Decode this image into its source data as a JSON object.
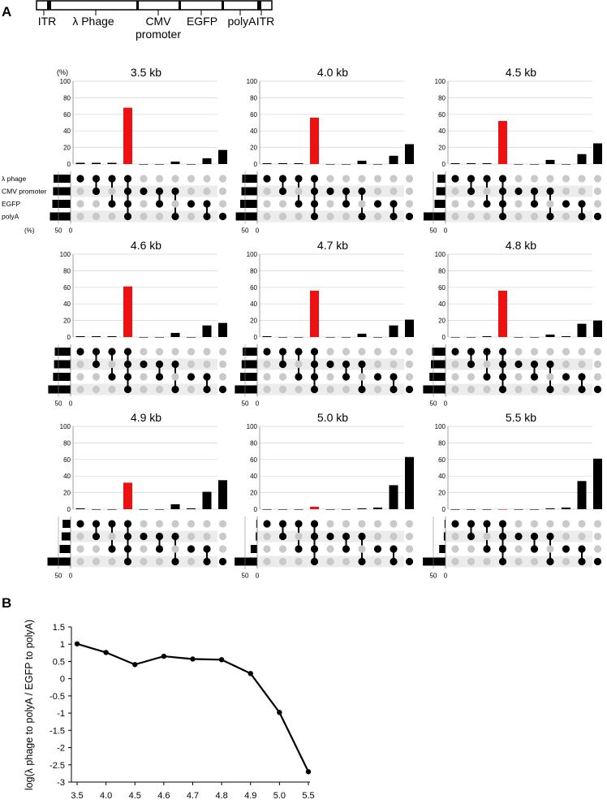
{
  "panel_labels": {
    "a": "A",
    "b": "B"
  },
  "construct": {
    "labels": [
      "ITR",
      "λ Phage",
      "CMV",
      "promoter",
      "EGFP",
      "polyA",
      "ITR"
    ]
  },
  "upset": {
    "y_ticks": [
      "100",
      "80",
      "60",
      "40",
      "20",
      "0"
    ],
    "percent_label": "(%)",
    "set_labels": [
      "λ phage",
      "CMV promoter",
      "EGFP",
      "polyA"
    ],
    "set_axis_ticks": [
      "50",
      "0"
    ],
    "highlight_color": "#ee1111",
    "bar_color": "#000000"
  },
  "chart_data": [
    {
      "type": "bar",
      "chart": "upset",
      "ylim": [
        0,
        100
      ],
      "sets": [
        "λ phage",
        "CMV promoter",
        "EGFP",
        "polyA"
      ],
      "combinations": [
        [
          1,
          0,
          0,
          0
        ],
        [
          1,
          1,
          0,
          0
        ],
        [
          1,
          0,
          1,
          0
        ],
        [
          1,
          1,
          1,
          1
        ],
        [
          0,
          1,
          0,
          0
        ],
        [
          0,
          1,
          1,
          0
        ],
        [
          0,
          1,
          0,
          1
        ],
        [
          0,
          0,
          1,
          0
        ],
        [
          0,
          0,
          1,
          1
        ],
        [
          0,
          0,
          0,
          1
        ]
      ],
      "panels": [
        {
          "title": "3.5 kb",
          "values": [
            1.5,
            1.5,
            1.5,
            68,
            0,
            0,
            3,
            0,
            7,
            17
          ],
          "highlight": 3,
          "set_sizes": [
            70,
            72,
            75,
            85
          ]
        },
        {
          "title": "4.0 kb",
          "values": [
            1,
            1,
            1,
            56,
            0,
            0,
            4,
            0,
            10,
            24
          ],
          "highlight": 3,
          "set_sizes": [
            62,
            65,
            70,
            88
          ]
        },
        {
          "title": "4.5 kb",
          "values": [
            1,
            1,
            1,
            52,
            0,
            0,
            5,
            0,
            12,
            25
          ],
          "highlight": 3,
          "set_sizes": [
            33,
            38,
            45,
            90
          ]
        },
        {
          "title": "4.6 kb",
          "values": [
            1,
            1,
            1,
            61,
            0,
            0,
            5,
            0,
            14,
            17
          ],
          "highlight": 3,
          "set_sizes": [
            65,
            68,
            72,
            92
          ]
        },
        {
          "title": "4.7 kb",
          "values": [
            1,
            0,
            0,
            56,
            0,
            0,
            4,
            0,
            14,
            21
          ],
          "highlight": 3,
          "set_sizes": [
            60,
            64,
            70,
            92
          ]
        },
        {
          "title": "4.8 kb",
          "values": [
            0,
            0,
            1,
            56,
            0,
            0,
            3,
            1,
            16,
            20
          ],
          "highlight": 3,
          "set_sizes": [
            55,
            60,
            66,
            92
          ]
        },
        {
          "title": "4.9 kb",
          "values": [
            1,
            0,
            0,
            32,
            0,
            0,
            6,
            1,
            21,
            35
          ],
          "highlight": 3,
          "set_sizes": [
            33,
            37,
            45,
            95
          ]
        },
        {
          "title": "5.0 kb",
          "values": [
            0,
            0,
            0,
            3,
            0,
            0,
            1,
            2,
            29,
            63
          ],
          "highlight": 3,
          "set_sizes": [
            4,
            6,
            27,
            93
          ]
        },
        {
          "title": "5.5 kb",
          "values": [
            0,
            0,
            0,
            0,
            0,
            0,
            1,
            2,
            34,
            61
          ],
          "highlight": 3,
          "set_sizes": [
            4,
            7,
            26,
            93
          ]
        }
      ]
    },
    {
      "type": "line",
      "ylabel": "log(λ phage to polyA / EGFP to polyA)",
      "x": [
        "3.5",
        "4.0",
        "4.5",
        "4.6",
        "4.7",
        "4.8",
        "4.9",
        "5.0",
        "5.5"
      ],
      "values": [
        1.01,
        0.76,
        0.41,
        0.65,
        0.57,
        0.55,
        0.15,
        -0.98,
        -2.7
      ],
      "ylim": [
        -3,
        1.5
      ],
      "y_ticks": [
        "1.5",
        "1",
        "0.5",
        "0",
        "-0.5",
        "-1",
        "-1.5",
        "-2",
        "-2.5",
        "-3"
      ]
    }
  ]
}
